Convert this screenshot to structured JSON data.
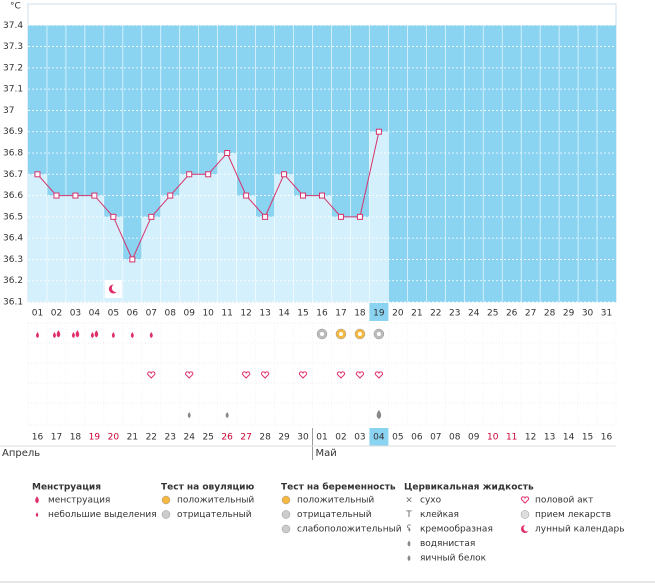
{
  "chart_data": {
    "type": "line",
    "unit": "°C",
    "categories": [
      "01",
      "02",
      "03",
      "04",
      "05",
      "06",
      "07",
      "08",
      "09",
      "10",
      "11",
      "12",
      "13",
      "14",
      "15",
      "16",
      "17",
      "18",
      "19",
      "20",
      "21",
      "22",
      "23",
      "24",
      "25",
      "26",
      "27",
      "28",
      "29",
      "30",
      "31"
    ],
    "values": [
      36.7,
      36.6,
      36.6,
      36.6,
      36.5,
      36.3,
      36.5,
      36.6,
      36.7,
      36.7,
      36.8,
      36.6,
      36.5,
      36.7,
      36.6,
      36.6,
      36.5,
      36.5,
      36.9,
      null,
      null,
      null,
      null,
      null,
      null,
      null,
      null,
      null,
      null,
      null,
      null
    ],
    "color": "#d6336c",
    "background": "#8ad4f2",
    "bar_color": "#d4f0fc",
    "ylim": [
      36.1,
      37.5
    ],
    "yticks": [
      36.1,
      36.2,
      36.3,
      36.4,
      36.5,
      36.6,
      36.7,
      36.8,
      36.9,
      37,
      37.1,
      37.2,
      37.3,
      37.4
    ],
    "highlight": "19",
    "dates": [
      "16",
      "17",
      "18",
      "19",
      "20",
      "21",
      "22",
      "23",
      "24",
      "25",
      "26",
      "27",
      "28",
      "29",
      "30",
      "01",
      "02",
      "03",
      "04",
      "05",
      "06",
      "07",
      "08",
      "09",
      "10",
      "11",
      "12",
      "13",
      "14",
      "15",
      "16"
    ],
    "holidays": [
      "19",
      "20",
      "26",
      "27",
      "10",
      "11"
    ],
    "months": [
      {
        "label": "Апрель",
        "start": "16"
      },
      {
        "label": "Май",
        "start": "01"
      }
    ],
    "highlight_date": "04"
  },
  "legend": [
    {
      "title": "Менструация",
      "items": [
        "менструация",
        "небольшие выделения"
      ]
    },
    {
      "title": "Тест на овуляцию",
      "items": [
        "положительный",
        "отрицательный"
      ]
    },
    {
      "title": "Тест на беременность",
      "items": [
        "положительный",
        "отрицательный",
        "слабоположительный"
      ]
    },
    {
      "title": "Цервикальная жидкость",
      "items": [
        "сухо",
        "клейкая",
        "кремообразная",
        "водянистая",
        "яичный белок"
      ],
      "extra": [
        "половой акт",
        "прием лекарств",
        "лунный календарь"
      ]
    }
  ]
}
